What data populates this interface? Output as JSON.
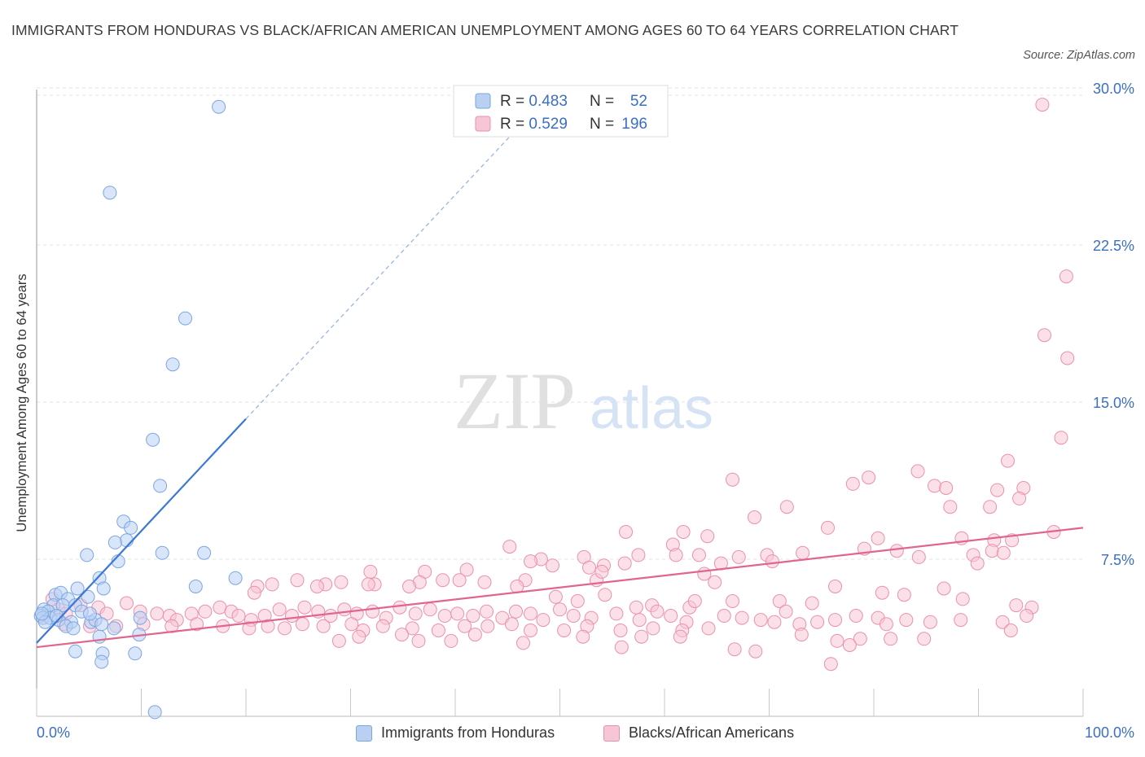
{
  "title": "IMMIGRANTS FROM HONDURAS VS BLACK/AFRICAN AMERICAN UNEMPLOYMENT AMONG AGES 60 TO 64 YEARS CORRELATION CHART",
  "source": "Source: ZipAtlas.com",
  "watermark": {
    "zip": "ZIP",
    "atlas": "atlas"
  },
  "colors": {
    "blue_fill": "#b9d0f2",
    "blue_stroke": "#7aa6e3",
    "blue_line": "#3a78d4",
    "pink_fill": "#f7c6d6",
    "pink_stroke": "#ea90ae",
    "pink_line": "#e0668f",
    "axis_text": "#3a6fc4"
  },
  "legend_top": [
    {
      "r_label": "R = ",
      "r_value": "0.483",
      "n_label": "N = ",
      "n_value": "52"
    },
    {
      "r_label": "R = ",
      "r_value": "0.529",
      "n_label": "N = ",
      "n_value": "196"
    }
  ],
  "legend_bottom": [
    "Immigrants from Honduras",
    "Blacks/African Americans"
  ],
  "chart_data": {
    "type": "scatter",
    "title": "IMMIGRANTS FROM HONDURAS VS BLACK/AFRICAN AMERICAN UNEMPLOYMENT AMONG AGES 60 TO 64 YEARS CORRELATION CHART",
    "xlabel": "",
    "ylabel": "Unemployment Among Ages 60 to 64 years",
    "xlim": [
      0,
      100
    ],
    "ylim": [
      0,
      30
    ],
    "x_tick_labels": [
      "0.0%",
      "100.0%"
    ],
    "y_ticks": [
      7.5,
      15,
      22.5,
      30
    ],
    "y_tick_labels": [
      "7.5%",
      "15.0%",
      "22.5%",
      "30.0%"
    ],
    "grid": true,
    "legend_position": "top-center",
    "series": [
      {
        "name": "Immigrants from Honduras",
        "R": 0.483,
        "N": 52,
        "trend": {
          "x0": 0,
          "y0": 3.5,
          "x1": 20,
          "y1": 14.2,
          "dashed_to_x": 46,
          "dashed_to_y": 28.1
        },
        "points": [
          [
            17.4,
            29.1
          ],
          [
            7,
            25
          ],
          [
            14.2,
            19
          ],
          [
            13,
            16.8
          ],
          [
            11.1,
            13.2
          ],
          [
            11.8,
            11
          ],
          [
            8.3,
            9.3
          ],
          [
            8.6,
            8.4
          ],
          [
            9,
            9
          ],
          [
            7.5,
            8.3
          ],
          [
            7.8,
            7.4
          ],
          [
            12,
            7.8
          ],
          [
            16,
            7.8
          ],
          [
            4.8,
            7.7
          ],
          [
            19,
            6.6
          ],
          [
            6,
            6.6
          ],
          [
            3.9,
            6.1
          ],
          [
            6.4,
            6.1
          ],
          [
            15.2,
            6.2
          ],
          [
            1.8,
            5.8
          ],
          [
            2.3,
            5.9
          ],
          [
            3,
            5.6
          ],
          [
            4.9,
            5.7
          ],
          [
            1.6,
            5.3
          ],
          [
            2.5,
            5.3
          ],
          [
            3.7,
            5.3
          ],
          [
            0.7,
            5.1
          ],
          [
            1.1,
            5
          ],
          [
            4.3,
            5
          ],
          [
            0.4,
            4.8
          ],
          [
            0.6,
            4.7
          ],
          [
            1.3,
            4.7
          ],
          [
            2.1,
            4.6
          ],
          [
            3.3,
            4.5
          ],
          [
            5.2,
            4.5
          ],
          [
            5.6,
            4.6
          ],
          [
            6.2,
            4.4
          ],
          [
            0.8,
            4.5
          ],
          [
            2.8,
            4.3
          ],
          [
            3.5,
            4.2
          ],
          [
            7.4,
            4.2
          ],
          [
            9.9,
            4.7
          ],
          [
            6,
            3.8
          ],
          [
            9.8,
            3.9
          ],
          [
            3.7,
            3.1
          ],
          [
            6.3,
            3
          ],
          [
            9.4,
            3
          ],
          [
            6.2,
            2.6
          ],
          [
            11.3,
            0.2
          ],
          [
            0.5,
            4.9
          ],
          [
            1.9,
            4.8
          ],
          [
            5.1,
            4.9
          ]
        ]
      },
      {
        "name": "Blacks/African Americans",
        "R": 0.529,
        "N": 196,
        "trend": {
          "x0": 0,
          "y0": 3.3,
          "x1": 100,
          "y1": 9
        },
        "points": [
          [
            96.1,
            29.2
          ],
          [
            98.4,
            21
          ],
          [
            96.3,
            18.2
          ],
          [
            98.5,
            17.1
          ],
          [
            97.9,
            13.3
          ],
          [
            92.8,
            12.2
          ],
          [
            84.2,
            11.7
          ],
          [
            79.5,
            11.4
          ],
          [
            78,
            11.1
          ],
          [
            85.8,
            11
          ],
          [
            86.9,
            10.9
          ],
          [
            91.8,
            10.8
          ],
          [
            94.3,
            10.9
          ],
          [
            66.5,
            11.3
          ],
          [
            93.9,
            10.4
          ],
          [
            71.7,
            10
          ],
          [
            87.3,
            10
          ],
          [
            91.1,
            10
          ],
          [
            68.6,
            9.5
          ],
          [
            75.6,
            9
          ],
          [
            80.4,
            8.5
          ],
          [
            88.4,
            8.5
          ],
          [
            91.5,
            8.4
          ],
          [
            93.2,
            8.4
          ],
          [
            97.2,
            8.8
          ],
          [
            82.2,
            7.9
          ],
          [
            61.8,
            8.8
          ],
          [
            64.1,
            8.6
          ],
          [
            60.8,
            8.2
          ],
          [
            45.2,
            8.1
          ],
          [
            73.2,
            7.8
          ],
          [
            79.1,
            8
          ],
          [
            89.5,
            7.7
          ],
          [
            91.3,
            7.9
          ],
          [
            92.4,
            7.8
          ],
          [
            63.3,
            7.7
          ],
          [
            67.1,
            7.6
          ],
          [
            69.8,
            7.7
          ],
          [
            61.1,
            7.7
          ],
          [
            56.3,
            8.8
          ],
          [
            52.3,
            7.6
          ],
          [
            48.2,
            7.5
          ],
          [
            89.9,
            7.3
          ],
          [
            84.3,
            7.6
          ],
          [
            70.3,
            7.4
          ],
          [
            65.4,
            7.3
          ],
          [
            63.8,
            6.8
          ],
          [
            56.2,
            7.3
          ],
          [
            57.5,
            7.7
          ],
          [
            52.8,
            7.1
          ],
          [
            54.2,
            7.2
          ],
          [
            53.5,
            6.5
          ],
          [
            47.2,
            7.4
          ],
          [
            41.1,
            7
          ],
          [
            37.1,
            6.9
          ],
          [
            31.9,
            6.9
          ],
          [
            38.8,
            6.5
          ],
          [
            49.3,
            7.2
          ],
          [
            54,
            6.9
          ],
          [
            46.7,
            6.5
          ],
          [
            40.4,
            6.5
          ],
          [
            36.6,
            6.4
          ],
          [
            32.3,
            6.3
          ],
          [
            35.6,
            6.2
          ],
          [
            31.7,
            6.3
          ],
          [
            29.1,
            6.4
          ],
          [
            27.6,
            6.3
          ],
          [
            26.8,
            6.2
          ],
          [
            24.9,
            6.5
          ],
          [
            22.5,
            6.3
          ],
          [
            21.1,
            6.2
          ],
          [
            20.8,
            5.9
          ],
          [
            42.8,
            6.4
          ],
          [
            45.9,
            6.2
          ],
          [
            49.6,
            5.7
          ],
          [
            51.7,
            5.5
          ],
          [
            54.3,
            5.8
          ],
          [
            57.3,
            5.2
          ],
          [
            58.8,
            5.3
          ],
          [
            62.4,
            5.2
          ],
          [
            62.9,
            5.5
          ],
          [
            64.8,
            6.4
          ],
          [
            66.5,
            5.5
          ],
          [
            71,
            5.5
          ],
          [
            74.1,
            5.4
          ],
          [
            76.3,
            6.2
          ],
          [
            80.8,
            5.9
          ],
          [
            82.9,
            5.8
          ],
          [
            86.7,
            6.1
          ],
          [
            88.5,
            5.6
          ],
          [
            93.6,
            5.3
          ],
          [
            95.1,
            5.2
          ],
          [
            1.5,
            5.6
          ],
          [
            2.1,
            5.1
          ],
          [
            2.8,
            4.9
          ],
          [
            4.2,
            5.3
          ],
          [
            5.9,
            5.2
          ],
          [
            6.7,
            4.9
          ],
          [
            8.6,
            5.4
          ],
          [
            9.9,
            5
          ],
          [
            11.5,
            4.9
          ],
          [
            12.7,
            4.8
          ],
          [
            13.4,
            4.6
          ],
          [
            14.8,
            4.9
          ],
          [
            16.1,
            5
          ],
          [
            17.5,
            5.2
          ],
          [
            18.6,
            5
          ],
          [
            19.3,
            4.8
          ],
          [
            20.5,
            4.6
          ],
          [
            21.8,
            4.8
          ],
          [
            23.2,
            5.1
          ],
          [
            24.4,
            4.8
          ],
          [
            25.6,
            5.2
          ],
          [
            26.9,
            5
          ],
          [
            28.1,
            4.8
          ],
          [
            29.4,
            5.1
          ],
          [
            30.6,
            4.9
          ],
          [
            32.1,
            5
          ],
          [
            33.4,
            4.7
          ],
          [
            34.7,
            5.2
          ],
          [
            36.2,
            4.9
          ],
          [
            37.6,
            5.1
          ],
          [
            39,
            4.8
          ],
          [
            40.2,
            4.9
          ],
          [
            41.7,
            4.8
          ],
          [
            43,
            5
          ],
          [
            44.5,
            4.7
          ],
          [
            45.8,
            5
          ],
          [
            47.2,
            4.9
          ],
          [
            48.4,
            4.6
          ],
          [
            50,
            5.1
          ],
          [
            51.3,
            4.8
          ],
          [
            53,
            4.7
          ],
          [
            55.4,
            4.9
          ],
          [
            57.6,
            4.6
          ],
          [
            59.3,
            5
          ],
          [
            60.6,
            4.8
          ],
          [
            62.1,
            4.5
          ],
          [
            65.7,
            4.8
          ],
          [
            67.4,
            4.7
          ],
          [
            69.2,
            4.6
          ],
          [
            71.6,
            5
          ],
          [
            72.9,
            4.4
          ],
          [
            74.6,
            4.5
          ],
          [
            76.3,
            4.6
          ],
          [
            78.3,
            4.8
          ],
          [
            80.4,
            4.7
          ],
          [
            81.2,
            4.4
          ],
          [
            83.1,
            4.6
          ],
          [
            85.4,
            4.5
          ],
          [
            88.3,
            4.6
          ],
          [
            92.3,
            4.5
          ],
          [
            94.6,
            4.8
          ],
          [
            2.6,
            4.4
          ],
          [
            5.1,
            4.3
          ],
          [
            7.6,
            4.3
          ],
          [
            10.2,
            4.4
          ],
          [
            12.9,
            4.3
          ],
          [
            15.3,
            4.4
          ],
          [
            17.8,
            4.3
          ],
          [
            20.3,
            4.2
          ],
          [
            22.1,
            4.3
          ],
          [
            23.7,
            4.2
          ],
          [
            25.4,
            4.4
          ],
          [
            27.4,
            4.3
          ],
          [
            30.1,
            4.4
          ],
          [
            31.2,
            4.1
          ],
          [
            33.1,
            4.3
          ],
          [
            35.9,
            4.2
          ],
          [
            38.4,
            4.1
          ],
          [
            40.9,
            4.3
          ],
          [
            43.1,
            4.3
          ],
          [
            45.4,
            4.4
          ],
          [
            47.2,
            4.1
          ],
          [
            50.4,
            4.1
          ],
          [
            52.6,
            4.3
          ],
          [
            55.8,
            4.1
          ],
          [
            58.9,
            4.2
          ],
          [
            61.7,
            4.1
          ],
          [
            64.2,
            4.2
          ],
          [
            70.5,
            4.5
          ],
          [
            73.1,
            3.9
          ],
          [
            76.5,
            3.6
          ],
          [
            78.7,
            3.7
          ],
          [
            93.1,
            4.1
          ],
          [
            28.9,
            3.6
          ],
          [
            30.8,
            3.8
          ],
          [
            34.9,
            3.9
          ],
          [
            36.5,
            3.6
          ],
          [
            39.6,
            3.6
          ],
          [
            41.9,
            3.9
          ],
          [
            46.5,
            3.5
          ],
          [
            52.2,
            3.8
          ],
          [
            57.8,
            3.8
          ],
          [
            61.5,
            3.8
          ],
          [
            66.7,
            3.2
          ],
          [
            68.7,
            3.1
          ],
          [
            77.7,
            3.4
          ],
          [
            81.6,
            3.7
          ],
          [
            84.8,
            3.7
          ],
          [
            75.9,
            2.5
          ],
          [
            55.9,
            3.3
          ]
        ]
      }
    ]
  }
}
